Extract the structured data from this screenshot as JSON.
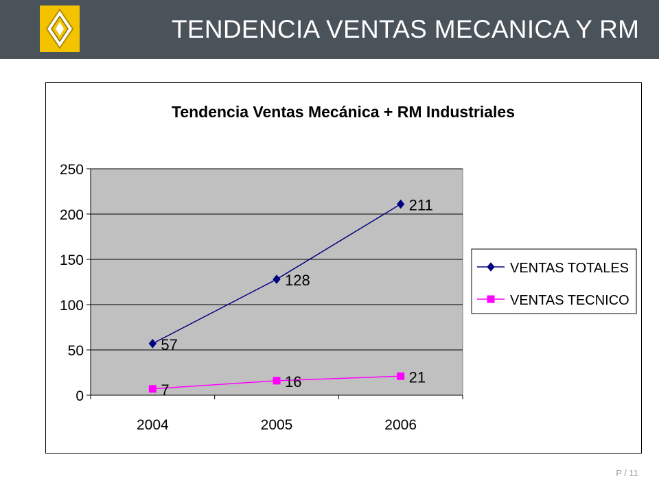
{
  "header": {
    "title": "TENDENCIA VENTAS MECANICA Y RM",
    "background": "#4a525a",
    "logo_color": "#f3c300"
  },
  "footer": {
    "page_label": "P / 11"
  },
  "chart_data": {
    "type": "line",
    "title": "Tendencia Ventas Mecánica + RM Industriales",
    "categories": [
      "2004",
      "2005",
      "2006"
    ],
    "series": [
      {
        "name": "VENTAS TOTALES",
        "values": [
          57,
          128,
          211
        ],
        "color": "#000080",
        "marker": "diamond"
      },
      {
        "name": "VENTAS TECNICO",
        "values": [
          7,
          16,
          21
        ],
        "color": "#ff00ff",
        "marker": "square"
      }
    ],
    "ylim": [
      0,
      250
    ],
    "yticks": [
      0,
      50,
      100,
      150,
      200,
      250
    ],
    "xlabel": "",
    "ylabel": "",
    "grid": true,
    "plot_background": "#c0c0c0",
    "legend_position": "right"
  }
}
